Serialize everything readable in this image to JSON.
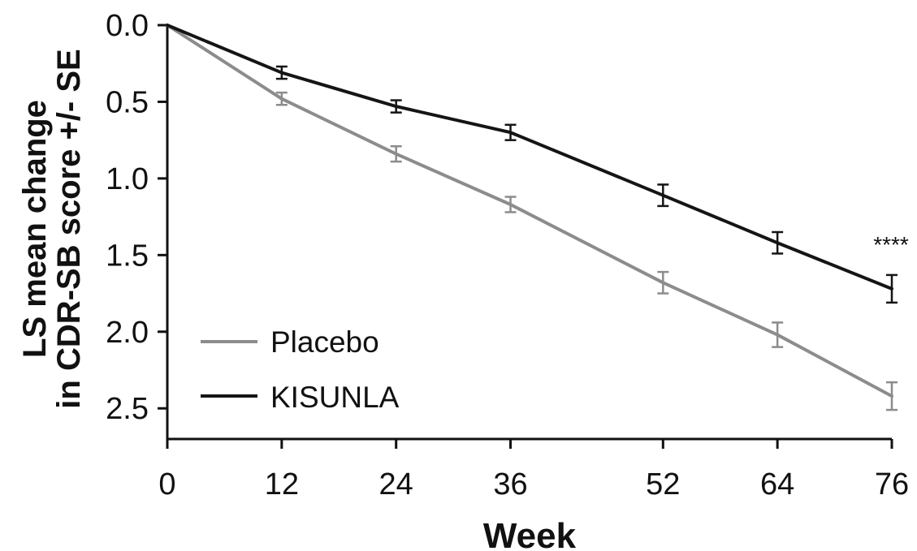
{
  "chart_data": {
    "type": "line",
    "xlabel": "Week",
    "ylabel_lines": [
      "LS mean change",
      "in CDR-SB score +/- SE"
    ],
    "x_ticks": [
      "0",
      "12",
      "24",
      "36",
      "52",
      "64",
      "76"
    ],
    "y_ticks": [
      "0.0",
      "0.5",
      "1.0",
      "1.5",
      "2.0",
      "2.5"
    ],
    "x": [
      0,
      12,
      24,
      36,
      52,
      64,
      76
    ],
    "xlim": [
      0,
      76
    ],
    "ylim": [
      0,
      2.7
    ],
    "y_inverted": true,
    "grid": false,
    "legend_position": "bottom-left",
    "series": [
      {
        "name": "Placebo",
        "color": "#8c8c8c",
        "values": [
          0.0,
          0.48,
          0.84,
          1.17,
          1.68,
          2.02,
          2.42
        ],
        "se": [
          0.0,
          0.04,
          0.05,
          0.05,
          0.07,
          0.08,
          0.09
        ]
      },
      {
        "name": "KISUNLA",
        "color": "#151515",
        "values": [
          0.0,
          0.31,
          0.53,
          0.7,
          1.11,
          1.42,
          1.72
        ],
        "se": [
          0.0,
          0.04,
          0.04,
          0.05,
          0.07,
          0.07,
          0.09
        ]
      }
    ],
    "annotations": [
      {
        "text": "****",
        "x": 76,
        "near_series": "KISUNLA"
      }
    ]
  }
}
